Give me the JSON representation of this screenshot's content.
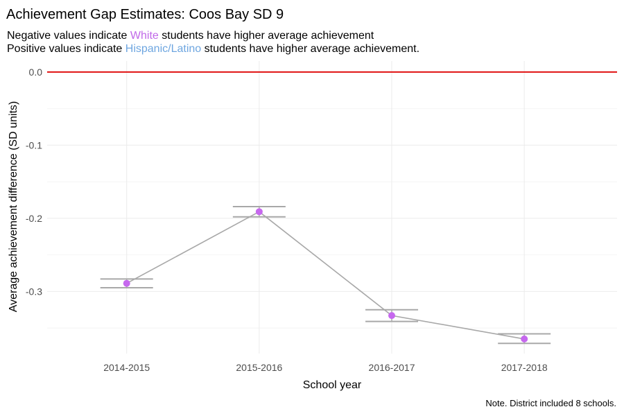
{
  "chart_data": {
    "type": "line",
    "title": "Achievement Gap Estimates: Coos Bay SD 9",
    "subtitle": {
      "line1": {
        "pre": "Negative values indicate ",
        "highlight": "White",
        "post": " students have higher average achievement"
      },
      "line2": {
        "pre": "Positive values indicate ",
        "highlight": "Hispanic/Latino",
        "post": " students have higher average achievement."
      }
    },
    "xlabel": "School year",
    "ylabel": "Average achievement difference (SD units)",
    "caption": "Note. District included 8 schools.",
    "categories": [
      "2014-2015",
      "2015-2016",
      "2016-2017",
      "2017-2018"
    ],
    "values": [
      -0.289,
      -0.191,
      -0.333,
      -0.365
    ],
    "ci_lower": [
      -0.295,
      -0.198,
      -0.341,
      -0.371
    ],
    "ci_upper": [
      -0.283,
      -0.184,
      -0.325,
      -0.358
    ],
    "ylim": [
      -0.385,
      0.015
    ],
    "yticks": [
      0.0,
      -0.1,
      -0.2,
      -0.3
    ],
    "ytick_labels": [
      "0.0",
      "-0.1",
      "-0.2",
      "-0.3"
    ],
    "reference_line": 0.0,
    "grid": true,
    "colors": {
      "white_group": "#c068e8",
      "hispanic_group": "#6ea6e0",
      "reference_line": "#e01010",
      "series_line": "#a8a8a8",
      "point": "#c668ee",
      "gridline": "#ebebeb"
    }
  }
}
